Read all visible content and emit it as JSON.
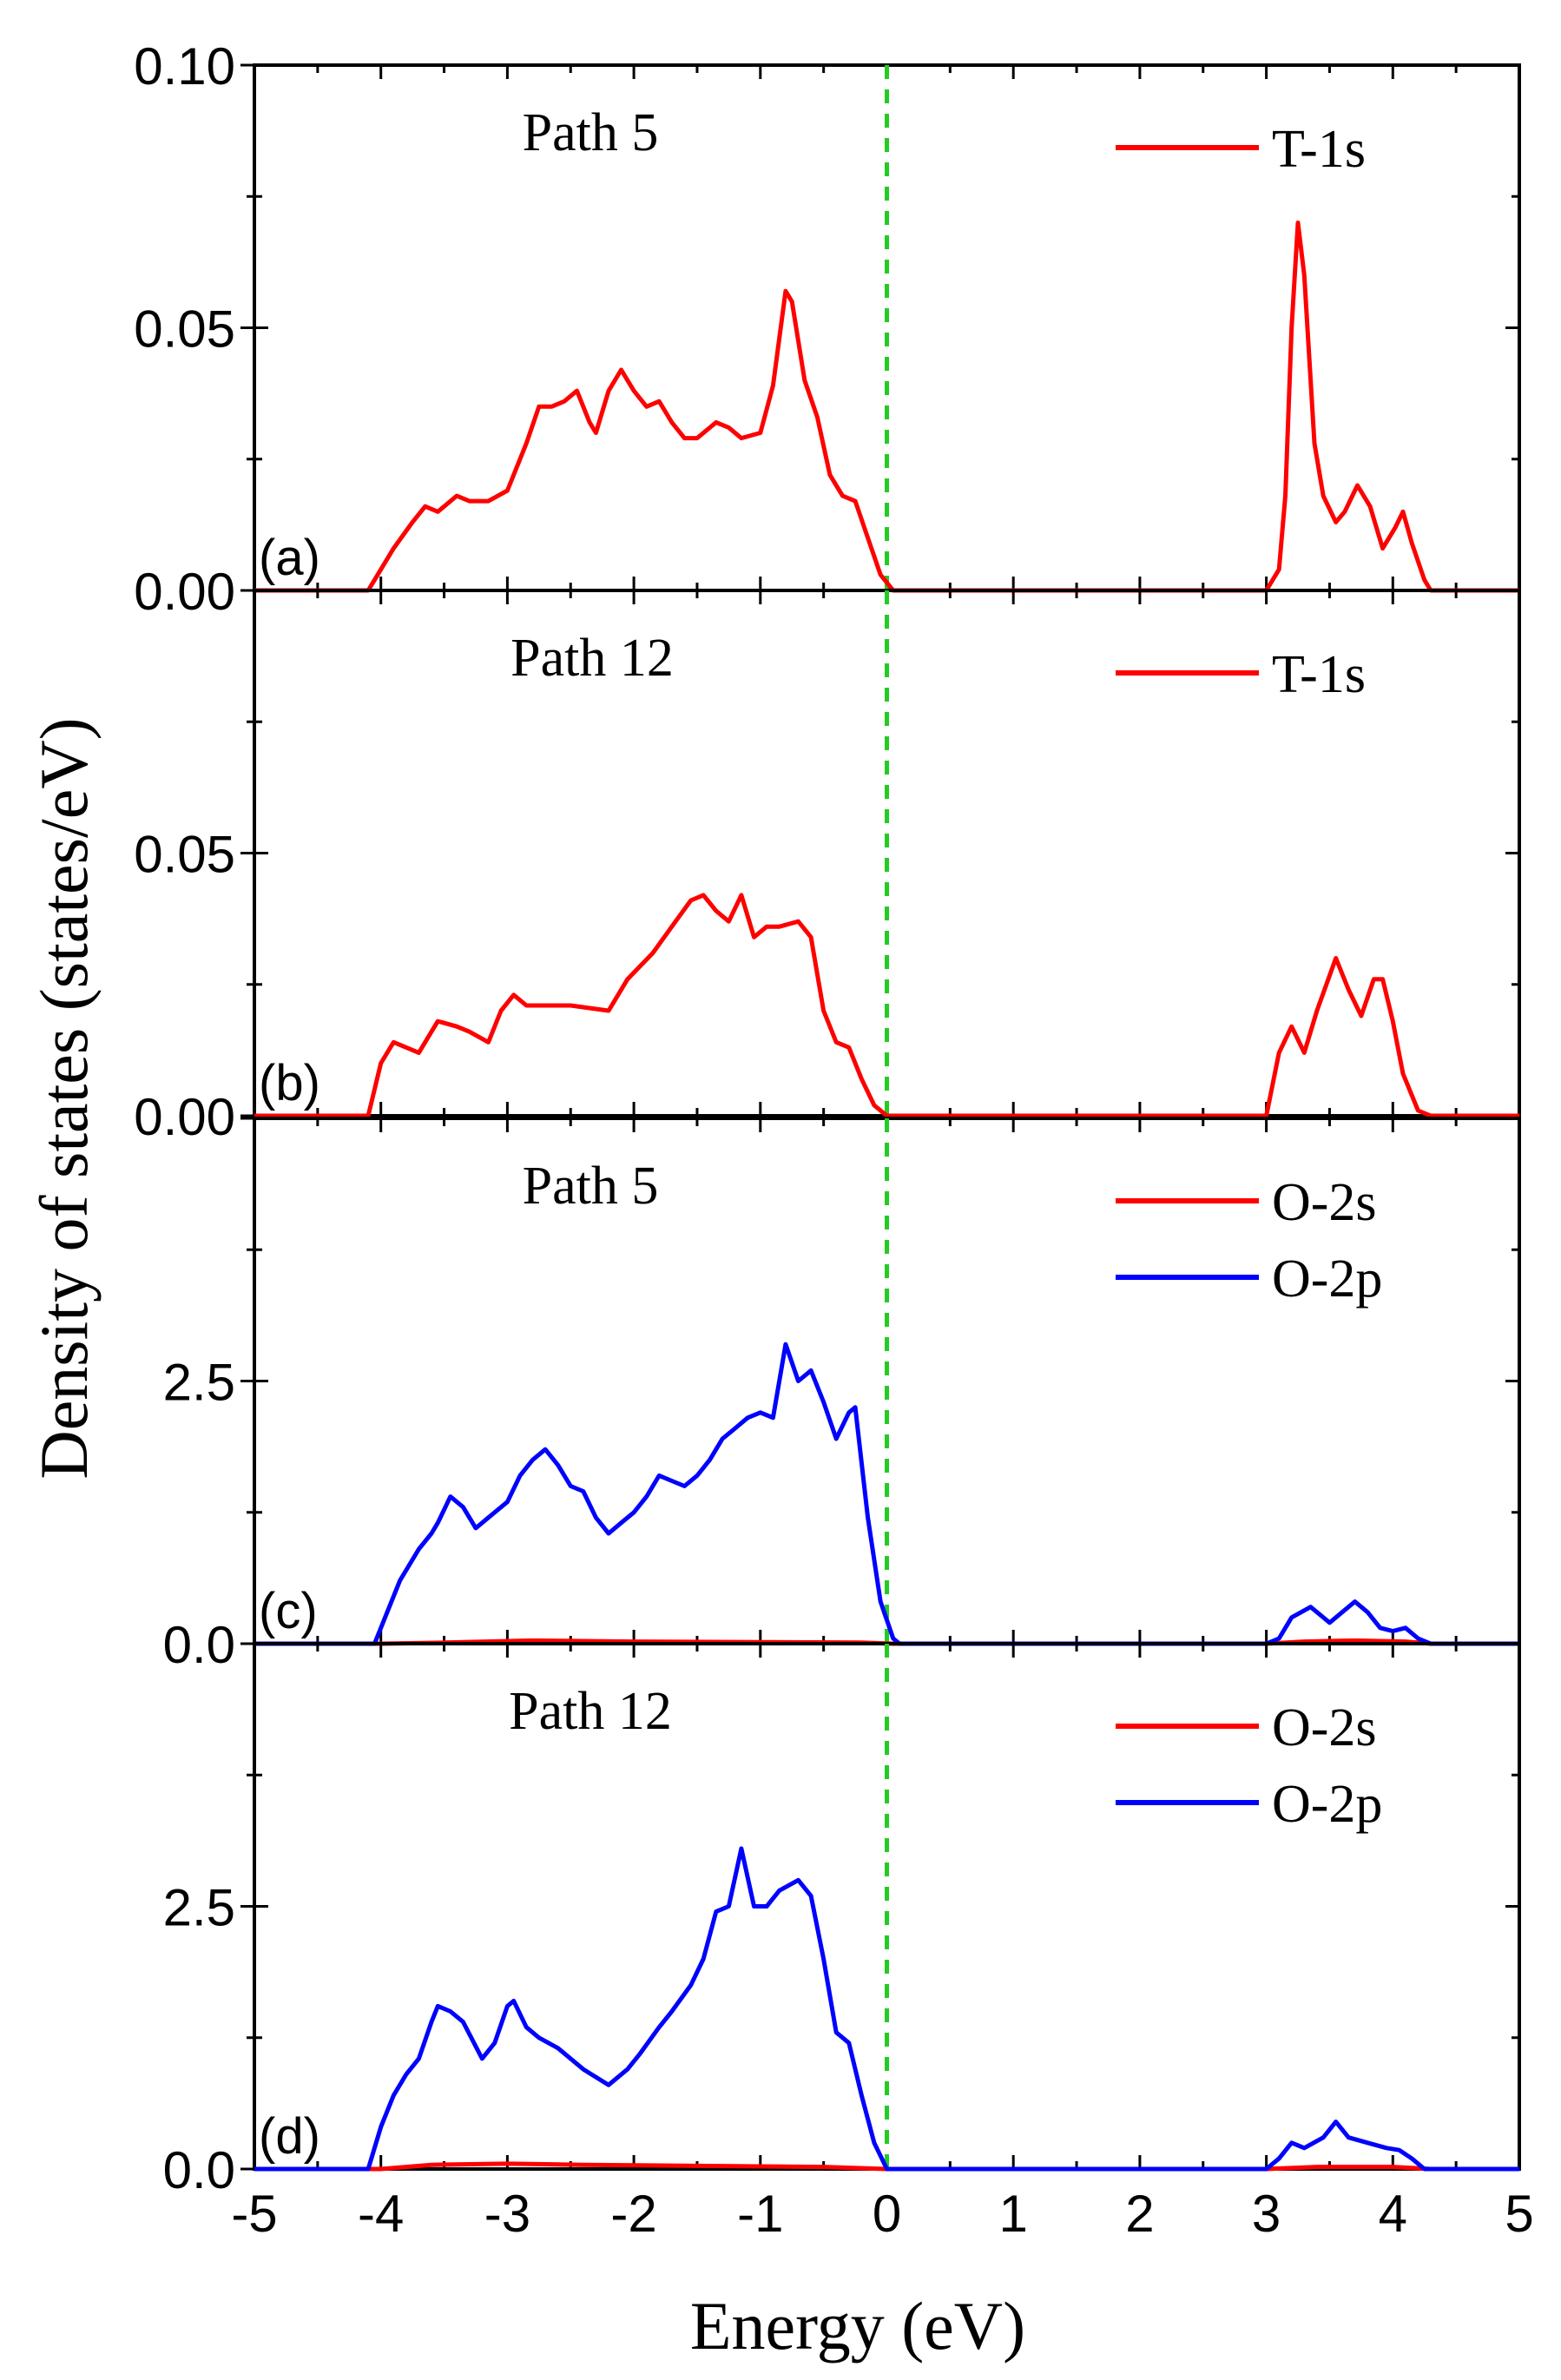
{
  "figure": {
    "ylabel": "Density of states (states/eV)",
    "xlabel": "Energy (eV)",
    "x_ticks": [
      "-5",
      "-4",
      "-3",
      "-2",
      "-1",
      "0",
      "1",
      "2",
      "3",
      "4",
      "5"
    ],
    "fermi_line_color": "#22cc22",
    "colors": {
      "red": "#ff0000",
      "blue": "#0000ff",
      "axis": "#000000"
    }
  },
  "chart_data": [
    {
      "type": "line",
      "panel_label": "(a)",
      "title": "Path 5",
      "xlim": [
        -5,
        5
      ],
      "ylim": [
        0,
        0.1
      ],
      "y_ticks": [
        "0.10",
        "0.05",
        "0.00"
      ],
      "y_tick_values": [
        0.1,
        0.05,
        0.0
      ],
      "legend_position": "top-right",
      "series": [
        {
          "name": "T-1s",
          "color": "#ff0000",
          "points": [
            [
              -5,
              0
            ],
            [
              -4.1,
              0
            ],
            [
              -4.05,
              0.002
            ],
            [
              -3.9,
              0.008
            ],
            [
              -3.75,
              0.013
            ],
            [
              -3.65,
              0.016
            ],
            [
              -3.55,
              0.015
            ],
            [
              -3.4,
              0.018
            ],
            [
              -3.3,
              0.017
            ],
            [
              -3.15,
              0.017
            ],
            [
              -3.0,
              0.019
            ],
            [
              -2.85,
              0.028
            ],
            [
              -2.75,
              0.035
            ],
            [
              -2.65,
              0.035
            ],
            [
              -2.55,
              0.036
            ],
            [
              -2.45,
              0.038
            ],
            [
              -2.35,
              0.032
            ],
            [
              -2.3,
              0.03
            ],
            [
              -2.2,
              0.038
            ],
            [
              -2.1,
              0.042
            ],
            [
              -2.0,
              0.038
            ],
            [
              -1.9,
              0.035
            ],
            [
              -1.8,
              0.036
            ],
            [
              -1.7,
              0.032
            ],
            [
              -1.6,
              0.029
            ],
            [
              -1.5,
              0.029
            ],
            [
              -1.35,
              0.032
            ],
            [
              -1.25,
              0.031
            ],
            [
              -1.15,
              0.029
            ],
            [
              -1.0,
              0.03
            ],
            [
              -0.9,
              0.039
            ],
            [
              -0.8,
              0.057
            ],
            [
              -0.75,
              0.055
            ],
            [
              -0.65,
              0.04
            ],
            [
              -0.55,
              0.033
            ],
            [
              -0.45,
              0.022
            ],
            [
              -0.35,
              0.018
            ],
            [
              -0.25,
              0.017
            ],
            [
              -0.15,
              0.01
            ],
            [
              -0.05,
              0.003
            ],
            [
              0.05,
              0
            ],
            [
              3.0,
              0
            ],
            [
              3.1,
              0.004
            ],
            [
              3.15,
              0.018
            ],
            [
              3.2,
              0.05
            ],
            [
              3.25,
              0.07
            ],
            [
              3.3,
              0.06
            ],
            [
              3.38,
              0.028
            ],
            [
              3.45,
              0.018
            ],
            [
              3.55,
              0.013
            ],
            [
              3.62,
              0.015
            ],
            [
              3.72,
              0.02
            ],
            [
              3.82,
              0.016
            ],
            [
              3.92,
              0.008
            ],
            [
              4.02,
              0.012
            ],
            [
              4.08,
              0.015
            ],
            [
              4.15,
              0.009
            ],
            [
              4.25,
              0.002
            ],
            [
              4.3,
              0
            ],
            [
              5,
              0
            ]
          ]
        }
      ]
    },
    {
      "type": "line",
      "panel_label": "(b)",
      "title": "Path 12",
      "xlim": [
        -5,
        5
      ],
      "ylim": [
        0,
        0.1
      ],
      "y_ticks": [
        "0.05",
        "0.00"
      ],
      "y_tick_values": [
        0.05,
        0.0
      ],
      "legend_position": "top-right",
      "series": [
        {
          "name": "T-1s",
          "color": "#ff0000",
          "points": [
            [
              -5,
              0
            ],
            [
              -4.1,
              0
            ],
            [
              -4.0,
              0.01
            ],
            [
              -3.9,
              0.014
            ],
            [
              -3.8,
              0.013
            ],
            [
              -3.7,
              0.012
            ],
            [
              -3.55,
              0.018
            ],
            [
              -3.4,
              0.017
            ],
            [
              -3.3,
              0.016
            ],
            [
              -3.15,
              0.014
            ],
            [
              -3.05,
              0.02
            ],
            [
              -2.95,
              0.023
            ],
            [
              -2.85,
              0.021
            ],
            [
              -2.7,
              0.021
            ],
            [
              -2.5,
              0.021
            ],
            [
              -2.2,
              0.02
            ],
            [
              -2.05,
              0.026
            ],
            [
              -1.85,
              0.031
            ],
            [
              -1.7,
              0.036
            ],
            [
              -1.55,
              0.041
            ],
            [
              -1.45,
              0.042
            ],
            [
              -1.35,
              0.039
            ],
            [
              -1.25,
              0.037
            ],
            [
              -1.15,
              0.042
            ],
            [
              -1.05,
              0.034
            ],
            [
              -0.95,
              0.036
            ],
            [
              -0.85,
              0.036
            ],
            [
              -0.7,
              0.037
            ],
            [
              -0.6,
              0.034
            ],
            [
              -0.5,
              0.02
            ],
            [
              -0.4,
              0.014
            ],
            [
              -0.3,
              0.013
            ],
            [
              -0.2,
              0.007
            ],
            [
              -0.1,
              0.002
            ],
            [
              0.0,
              0
            ],
            [
              3.0,
              0
            ],
            [
              3.1,
              0.012
            ],
            [
              3.2,
              0.017
            ],
            [
              3.3,
              0.012
            ],
            [
              3.4,
              0.02
            ],
            [
              3.55,
              0.03
            ],
            [
              3.65,
              0.024
            ],
            [
              3.75,
              0.019
            ],
            [
              3.85,
              0.026
            ],
            [
              3.92,
              0.026
            ],
            [
              4.0,
              0.018
            ],
            [
              4.08,
              0.008
            ],
            [
              4.2,
              0.001
            ],
            [
              4.3,
              0
            ],
            [
              5,
              0
            ]
          ]
        }
      ]
    },
    {
      "type": "line",
      "panel_label": "(c)",
      "title": "Path 5",
      "xlim": [
        -5,
        5
      ],
      "ylim": [
        0,
        5.0
      ],
      "y_ticks": [
        "2.5",
        "0.0"
      ],
      "y_tick_values": [
        2.5,
        0.0
      ],
      "legend_position": "top-right",
      "series": [
        {
          "name": "O-2s",
          "color": "#ff0000",
          "points": [
            [
              -5,
              0
            ],
            [
              -4.0,
              0
            ],
            [
              -3.5,
              0.01
            ],
            [
              -2.8,
              0.03
            ],
            [
              -2.0,
              0.02
            ],
            [
              -1.0,
              0.015
            ],
            [
              -0.2,
              0.01
            ],
            [
              0.05,
              0
            ],
            [
              3.0,
              0
            ],
            [
              3.3,
              0.02
            ],
            [
              3.7,
              0.03
            ],
            [
              4.1,
              0.02
            ],
            [
              4.3,
              0
            ],
            [
              5,
              0
            ]
          ]
        },
        {
          "name": "O-2p",
          "color": "#0000ff",
          "points": [
            [
              -5,
              0
            ],
            [
              -4.05,
              0
            ],
            [
              -3.95,
              0.3
            ],
            [
              -3.85,
              0.6
            ],
            [
              -3.7,
              0.9
            ],
            [
              -3.6,
              1.05
            ],
            [
              -3.55,
              1.15
            ],
            [
              -3.45,
              1.4
            ],
            [
              -3.35,
              1.3
            ],
            [
              -3.25,
              1.1
            ],
            [
              -3.15,
              1.2
            ],
            [
              -3.0,
              1.35
            ],
            [
              -2.9,
              1.6
            ],
            [
              -2.8,
              1.75
            ],
            [
              -2.7,
              1.85
            ],
            [
              -2.6,
              1.7
            ],
            [
              -2.5,
              1.5
            ],
            [
              -2.4,
              1.45
            ],
            [
              -2.3,
              1.2
            ],
            [
              -2.2,
              1.05
            ],
            [
              -2.1,
              1.15
            ],
            [
              -2.0,
              1.25
            ],
            [
              -1.9,
              1.4
            ],
            [
              -1.8,
              1.6
            ],
            [
              -1.7,
              1.55
            ],
            [
              -1.6,
              1.5
            ],
            [
              -1.5,
              1.6
            ],
            [
              -1.4,
              1.75
            ],
            [
              -1.3,
              1.95
            ],
            [
              -1.2,
              2.05
            ],
            [
              -1.1,
              2.15
            ],
            [
              -1.0,
              2.2
            ],
            [
              -0.9,
              2.15
            ],
            [
              -0.8,
              2.85
            ],
            [
              -0.7,
              2.5
            ],
            [
              -0.6,
              2.6
            ],
            [
              -0.5,
              2.3
            ],
            [
              -0.4,
              1.95
            ],
            [
              -0.3,
              2.2
            ],
            [
              -0.25,
              2.25
            ],
            [
              -0.15,
              1.2
            ],
            [
              -0.05,
              0.4
            ],
            [
              0.05,
              0.05
            ],
            [
              0.1,
              0
            ],
            [
              3.0,
              0
            ],
            [
              3.1,
              0.05
            ],
            [
              3.2,
              0.25
            ],
            [
              3.35,
              0.35
            ],
            [
              3.5,
              0.2
            ],
            [
              3.6,
              0.3
            ],
            [
              3.7,
              0.4
            ],
            [
              3.8,
              0.3
            ],
            [
              3.9,
              0.15
            ],
            [
              4.0,
              0.12
            ],
            [
              4.1,
              0.15
            ],
            [
              4.2,
              0.05
            ],
            [
              4.3,
              0
            ],
            [
              5,
              0
            ]
          ]
        }
      ]
    },
    {
      "type": "line",
      "panel_label": "(d)",
      "title": "Path 12",
      "xlim": [
        -5,
        5
      ],
      "ylim": [
        0,
        5.0
      ],
      "y_ticks": [
        "2.5",
        "0.0"
      ],
      "y_tick_values": [
        2.5,
        0.0
      ],
      "legend_position": "top-right",
      "series": [
        {
          "name": "O-2s",
          "color": "#ff0000",
          "points": [
            [
              -5,
              0
            ],
            [
              -4.0,
              0
            ],
            [
              -3.6,
              0.04
            ],
            [
              -3.0,
              0.05
            ],
            [
              -2.4,
              0.04
            ],
            [
              -1.5,
              0.03
            ],
            [
              -0.5,
              0.02
            ],
            [
              0.0,
              0
            ],
            [
              3.0,
              0
            ],
            [
              3.4,
              0.02
            ],
            [
              4.0,
              0.02
            ],
            [
              4.3,
              0
            ],
            [
              5,
              0
            ]
          ]
        },
        {
          "name": "O-2p",
          "color": "#0000ff",
          "points": [
            [
              -5,
              0
            ],
            [
              -4.1,
              0
            ],
            [
              -4.0,
              0.4
            ],
            [
              -3.9,
              0.7
            ],
            [
              -3.8,
              0.9
            ],
            [
              -3.7,
              1.05
            ],
            [
              -3.6,
              1.4
            ],
            [
              -3.55,
              1.55
            ],
            [
              -3.45,
              1.5
            ],
            [
              -3.35,
              1.4
            ],
            [
              -3.2,
              1.05
            ],
            [
              -3.1,
              1.2
            ],
            [
              -3.0,
              1.55
            ],
            [
              -2.95,
              1.6
            ],
            [
              -2.85,
              1.35
            ],
            [
              -2.75,
              1.25
            ],
            [
              -2.6,
              1.15
            ],
            [
              -2.4,
              0.95
            ],
            [
              -2.2,
              0.8
            ],
            [
              -2.05,
              0.95
            ],
            [
              -1.95,
              1.1
            ],
            [
              -1.8,
              1.35
            ],
            [
              -1.7,
              1.5
            ],
            [
              -1.55,
              1.75
            ],
            [
              -1.45,
              2.0
            ],
            [
              -1.35,
              2.45
            ],
            [
              -1.25,
              2.5
            ],
            [
              -1.15,
              3.05
            ],
            [
              -1.05,
              2.5
            ],
            [
              -0.95,
              2.5
            ],
            [
              -0.85,
              2.65
            ],
            [
              -0.7,
              2.75
            ],
            [
              -0.6,
              2.6
            ],
            [
              -0.5,
              2.0
            ],
            [
              -0.4,
              1.3
            ],
            [
              -0.3,
              1.2
            ],
            [
              -0.2,
              0.7
            ],
            [
              -0.1,
              0.25
            ],
            [
              0.0,
              0
            ],
            [
              3.0,
              0
            ],
            [
              3.1,
              0.1
            ],
            [
              3.2,
              0.25
            ],
            [
              3.3,
              0.2
            ],
            [
              3.45,
              0.3
            ],
            [
              3.55,
              0.45
            ],
            [
              3.65,
              0.3
            ],
            [
              3.8,
              0.25
            ],
            [
              3.95,
              0.2
            ],
            [
              4.05,
              0.18
            ],
            [
              4.15,
              0.1
            ],
            [
              4.25,
              0
            ],
            [
              5,
              0
            ]
          ]
        }
      ]
    }
  ]
}
